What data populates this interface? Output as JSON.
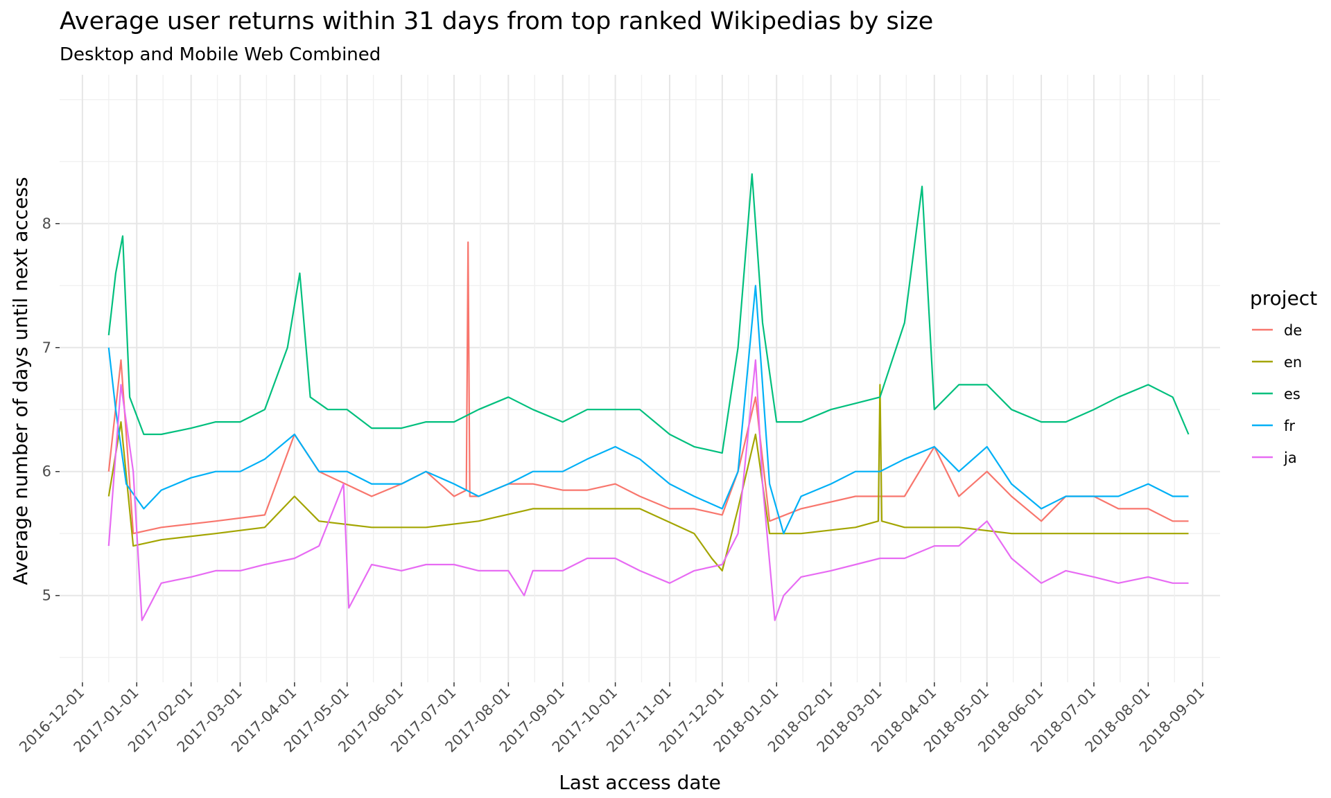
{
  "chart_data": {
    "type": "line",
    "title": "Average user returns within 31 days from top ranked Wikipedias by size",
    "subtitle": "Desktop and Mobile Web Combined",
    "xlabel": "Last access date",
    "ylabel": "Average number of days until next access",
    "x_tick_labels": [
      "2016-12-01",
      "2017-01-01",
      "2017-02-01",
      "2017-03-01",
      "2017-04-01",
      "2017-05-01",
      "2017-06-01",
      "2017-07-01",
      "2017-08-01",
      "2017-09-01",
      "2017-10-01",
      "2017-11-01",
      "2017-12-01",
      "2018-01-01",
      "2018-02-01",
      "2018-03-01",
      "2018-04-01",
      "2018-05-01",
      "2018-06-01",
      "2018-07-01",
      "2018-08-01",
      "2018-09-01"
    ],
    "y_ticks": [
      5,
      6,
      7,
      8
    ],
    "y_tick_labels": [
      "5",
      "6",
      "7",
      "8"
    ],
    "xlim": [
      "2016-11-18",
      "2018-09-11"
    ],
    "ylim": [
      4.3,
      9.2
    ],
    "grid": true,
    "legend": {
      "title": "project",
      "position": "right"
    },
    "series": [
      {
        "name": "de",
        "color": "#F8766D",
        "x": [
          "2016-12-16",
          "2016-12-23",
          "2016-12-30",
          "2017-01-15",
          "2017-02-15",
          "2017-03-15",
          "2017-04-01",
          "2017-04-15",
          "2017-05-15",
          "2017-06-01",
          "2017-06-15",
          "2017-07-01",
          "2017-07-08",
          "2017-07-09",
          "2017-07-10",
          "2017-07-15",
          "2017-08-01",
          "2017-08-15",
          "2017-09-01",
          "2017-09-15",
          "2017-10-01",
          "2017-10-15",
          "2017-11-01",
          "2017-11-15",
          "2017-12-01",
          "2017-12-10",
          "2017-12-20",
          "2017-12-28",
          "2018-01-15",
          "2018-02-15",
          "2018-03-15",
          "2018-04-01",
          "2018-04-15",
          "2018-05-01",
          "2018-05-15",
          "2018-06-01",
          "2018-06-15",
          "2018-07-01",
          "2018-07-15",
          "2018-08-01",
          "2018-08-15",
          "2018-08-24"
        ],
        "y": [
          6.0,
          6.9,
          5.5,
          5.55,
          5.6,
          5.65,
          6.3,
          6.0,
          5.8,
          5.9,
          6.0,
          5.8,
          5.85,
          7.85,
          5.8,
          5.8,
          5.9,
          5.9,
          5.85,
          5.85,
          5.9,
          5.8,
          5.7,
          5.7,
          5.65,
          6.0,
          6.6,
          5.6,
          5.7,
          5.8,
          5.8,
          6.2,
          5.8,
          6.0,
          5.8,
          5.6,
          5.8,
          5.8,
          5.7,
          5.7,
          5.6,
          5.6
        ]
      },
      {
        "name": "en",
        "color": "#A3A500",
        "x": [
          "2016-12-16",
          "2016-12-23",
          "2016-12-30",
          "2017-01-15",
          "2017-02-15",
          "2017-03-15",
          "2017-04-01",
          "2017-04-15",
          "2017-05-15",
          "2017-06-15",
          "2017-07-15",
          "2017-08-15",
          "2017-09-15",
          "2017-10-15",
          "2017-11-15",
          "2017-11-25",
          "2017-12-01",
          "2017-12-10",
          "2017-12-20",
          "2017-12-28",
          "2018-01-15",
          "2018-02-15",
          "2018-02-28",
          "2018-03-01",
          "2018-03-02",
          "2018-03-15",
          "2018-04-15",
          "2018-05-15",
          "2018-06-15",
          "2018-07-15",
          "2018-08-15",
          "2018-08-24"
        ],
        "y": [
          5.8,
          6.4,
          5.4,
          5.45,
          5.5,
          5.55,
          5.8,
          5.6,
          5.55,
          5.55,
          5.6,
          5.7,
          5.7,
          5.7,
          5.5,
          5.3,
          5.2,
          5.7,
          6.3,
          5.5,
          5.5,
          5.55,
          5.6,
          6.7,
          5.6,
          5.55,
          5.55,
          5.5,
          5.5,
          5.5,
          5.5,
          5.5
        ]
      },
      {
        "name": "es",
        "color": "#00BF7D",
        "x": [
          "2016-12-16",
          "2016-12-20",
          "2016-12-24",
          "2016-12-28",
          "2017-01-05",
          "2017-01-15",
          "2017-02-01",
          "2017-02-15",
          "2017-03-01",
          "2017-03-15",
          "2017-03-28",
          "2017-04-04",
          "2017-04-10",
          "2017-04-20",
          "2017-05-01",
          "2017-05-15",
          "2017-06-01",
          "2017-06-15",
          "2017-07-01",
          "2017-07-15",
          "2017-08-01",
          "2017-08-15",
          "2017-09-01",
          "2017-09-15",
          "2017-10-01",
          "2017-10-15",
          "2017-11-01",
          "2017-11-15",
          "2017-12-01",
          "2017-12-10",
          "2017-12-18",
          "2017-12-24",
          "2018-01-01",
          "2018-01-15",
          "2018-02-01",
          "2018-02-15",
          "2018-03-01",
          "2018-03-15",
          "2018-03-25",
          "2018-04-01",
          "2018-04-15",
          "2018-05-01",
          "2018-05-15",
          "2018-06-01",
          "2018-06-15",
          "2018-07-01",
          "2018-07-15",
          "2018-08-01",
          "2018-08-15",
          "2018-08-24"
        ],
        "y": [
          7.1,
          7.6,
          7.9,
          6.6,
          6.3,
          6.3,
          6.35,
          6.4,
          6.4,
          6.5,
          7.0,
          7.6,
          6.6,
          6.5,
          6.5,
          6.35,
          6.35,
          6.4,
          6.4,
          6.5,
          6.6,
          6.5,
          6.4,
          6.5,
          6.5,
          6.5,
          6.3,
          6.2,
          6.15,
          7.0,
          8.4,
          7.2,
          6.4,
          6.4,
          6.5,
          6.55,
          6.6,
          7.2,
          8.3,
          6.5,
          6.7,
          6.7,
          6.5,
          6.4,
          6.4,
          6.5,
          6.6,
          6.7,
          6.6,
          6.3
        ]
      },
      {
        "name": "fr",
        "color": "#00B0F6",
        "x": [
          "2016-12-16",
          "2016-12-20",
          "2016-12-26",
          "2017-01-05",
          "2017-01-15",
          "2017-02-01",
          "2017-02-15",
          "2017-03-01",
          "2017-03-15",
          "2017-04-01",
          "2017-04-15",
          "2017-05-01",
          "2017-05-15",
          "2017-06-01",
          "2017-06-15",
          "2017-07-01",
          "2017-07-15",
          "2017-08-01",
          "2017-08-15",
          "2017-09-01",
          "2017-09-15",
          "2017-10-01",
          "2017-10-15",
          "2017-11-01",
          "2017-11-15",
          "2017-12-01",
          "2017-12-10",
          "2017-12-20",
          "2017-12-28",
          "2018-01-05",
          "2018-01-15",
          "2018-02-01",
          "2018-02-15",
          "2018-03-01",
          "2018-03-15",
          "2018-04-01",
          "2018-04-15",
          "2018-05-01",
          "2018-05-15",
          "2018-06-01",
          "2018-06-15",
          "2018-07-01",
          "2018-07-15",
          "2018-08-01",
          "2018-08-15",
          "2018-08-24"
        ],
        "y": [
          7.0,
          6.5,
          5.9,
          5.7,
          5.85,
          5.95,
          6.0,
          6.0,
          6.1,
          6.3,
          6.0,
          6.0,
          5.9,
          5.9,
          6.0,
          5.9,
          5.8,
          5.9,
          6.0,
          6.0,
          6.1,
          6.2,
          6.1,
          5.9,
          5.8,
          5.7,
          6.0,
          7.5,
          5.9,
          5.5,
          5.8,
          5.9,
          6.0,
          6.0,
          6.1,
          6.2,
          6.0,
          6.2,
          5.9,
          5.7,
          5.8,
          5.8,
          5.8,
          5.9,
          5.8,
          5.8
        ]
      },
      {
        "name": "ja",
        "color": "#E76BF3",
        "x": [
          "2016-12-16",
          "2016-12-23",
          "2016-12-30",
          "2017-01-04",
          "2017-01-15",
          "2017-02-01",
          "2017-02-15",
          "2017-03-01",
          "2017-03-15",
          "2017-04-01",
          "2017-04-15",
          "2017-04-29",
          "2017-05-02",
          "2017-05-15",
          "2017-06-01",
          "2017-06-15",
          "2017-07-01",
          "2017-07-15",
          "2017-08-01",
          "2017-08-10",
          "2017-08-15",
          "2017-09-01",
          "2017-09-15",
          "2017-10-01",
          "2017-10-15",
          "2017-11-01",
          "2017-11-15",
          "2017-12-01",
          "2017-12-10",
          "2017-12-20",
          "2017-12-24",
          "2017-12-31",
          "2018-01-05",
          "2018-01-15",
          "2018-02-01",
          "2018-02-15",
          "2018-03-01",
          "2018-03-15",
          "2018-04-01",
          "2018-04-15",
          "2018-05-01",
          "2018-05-15",
          "2018-06-01",
          "2018-06-15",
          "2018-07-01",
          "2018-07-15",
          "2018-08-01",
          "2018-08-15",
          "2018-08-24"
        ],
        "y": [
          5.4,
          6.7,
          6.0,
          4.8,
          5.1,
          5.15,
          5.2,
          5.2,
          5.25,
          5.3,
          5.4,
          5.9,
          4.9,
          5.25,
          5.2,
          5.25,
          5.25,
          5.2,
          5.2,
          5.0,
          5.2,
          5.2,
          5.3,
          5.3,
          5.2,
          5.1,
          5.2,
          5.25,
          5.5,
          6.9,
          5.9,
          4.8,
          5.0,
          5.15,
          5.2,
          5.25,
          5.3,
          5.3,
          5.4,
          5.4,
          5.6,
          5.3,
          5.1,
          5.2,
          5.15,
          5.1,
          5.15,
          5.1,
          5.1
        ]
      }
    ]
  }
}
